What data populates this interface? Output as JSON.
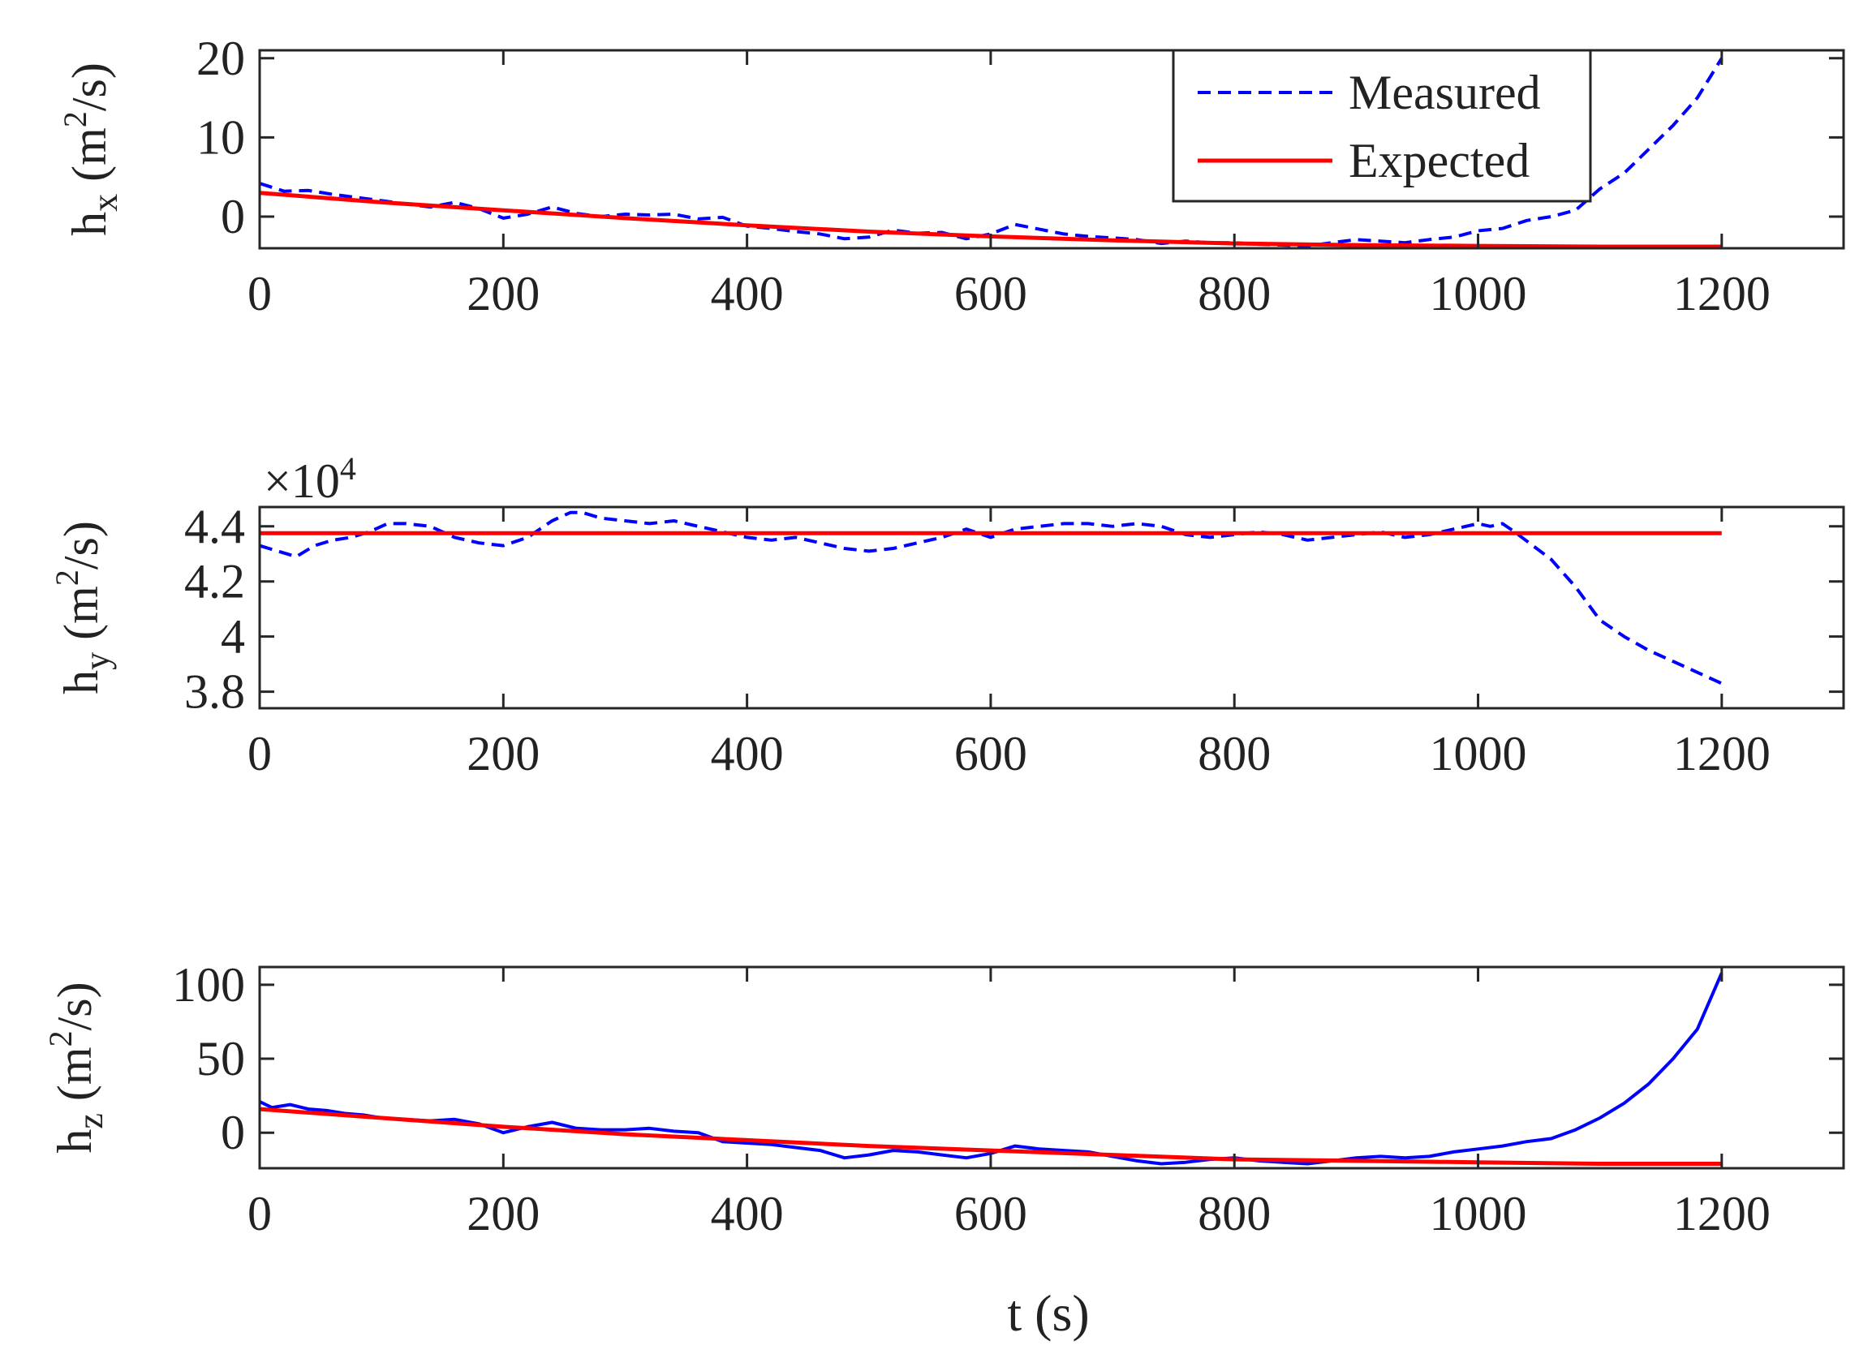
{
  "chart_data": [
    {
      "type": "line",
      "id": "hx",
      "ylabel": {
        "main": "h",
        "sub": "x",
        "unit_before": "(m",
        "unit_sup": "2",
        "unit_after": "/s)"
      },
      "xlim": [
        0,
        1300
      ],
      "ylim": [
        -4,
        21
      ],
      "xticks": [
        0,
        200,
        400,
        600,
        800,
        1000,
        1200
      ],
      "yticks": [
        0,
        10,
        20
      ],
      "ytick_labels": [
        "0",
        "10",
        "20"
      ],
      "legend": {
        "position": "top-right",
        "entries": [
          "Measured",
          "Expected"
        ]
      },
      "series": [
        {
          "name": "Measured",
          "style": "dashed",
          "color": "#0000ff",
          "x": [
            0,
            20,
            40,
            60,
            80,
            100,
            120,
            140,
            160,
            180,
            200,
            220,
            240,
            260,
            280,
            300,
            320,
            340,
            360,
            380,
            400,
            420,
            440,
            460,
            480,
            500,
            520,
            540,
            560,
            580,
            600,
            620,
            640,
            660,
            680,
            700,
            720,
            740,
            760,
            780,
            800,
            820,
            840,
            860,
            880,
            900,
            920,
            940,
            960,
            980,
            1000,
            1020,
            1040,
            1060,
            1080,
            1100,
            1120,
            1140,
            1160,
            1180,
            1200
          ],
          "y": [
            4.2,
            3.2,
            3.3,
            2.8,
            2.4,
            2.0,
            1.6,
            1.2,
            1.8,
            1.0,
            -0.2,
            0.3,
            1.2,
            0.4,
            0.0,
            0.3,
            0.2,
            0.3,
            -0.3,
            -0.1,
            -1.2,
            -1.5,
            -1.9,
            -2.2,
            -2.8,
            -2.6,
            -1.7,
            -2.1,
            -2.0,
            -2.8,
            -2.2,
            -1.0,
            -1.6,
            -2.2,
            -2.5,
            -2.7,
            -2.9,
            -3.4,
            -3.1,
            -3.3,
            -3.3,
            -3.5,
            -3.6,
            -3.7,
            -3.3,
            -2.9,
            -3.1,
            -3.3,
            -2.9,
            -2.6,
            -1.8,
            -1.5,
            -0.5,
            0.0,
            0.8,
            3.5,
            5.5,
            8.5,
            11.5,
            15.0,
            20.0
          ]
        },
        {
          "name": "Expected",
          "style": "solid",
          "color": "#ff0000",
          "x": [
            0,
            100,
            200,
            300,
            400,
            500,
            600,
            700,
            800,
            900,
            1000,
            1100,
            1200
          ],
          "y": [
            3.0,
            1.8,
            0.8,
            -0.2,
            -1.1,
            -1.9,
            -2.5,
            -3.0,
            -3.4,
            -3.6,
            -3.7,
            -3.8,
            -3.8
          ]
        }
      ]
    },
    {
      "type": "line",
      "id": "hy",
      "ylabel": {
        "main": "h",
        "sub": "y",
        "unit_before": "(m",
        "unit_sup": "2",
        "unit_after": "/s)"
      },
      "exponent": {
        "base": "×10",
        "power": "4"
      },
      "xlim": [
        0,
        1300
      ],
      "ylim": [
        3.74,
        4.47
      ],
      "xticks": [
        0,
        200,
        400,
        600,
        800,
        1000,
        1200
      ],
      "yticks": [
        3.8,
        4.0,
        4.2,
        4.4
      ],
      "ytick_labels": [
        "3.8",
        "4",
        "4.2",
        "4.4"
      ],
      "series": [
        {
          "name": "Measured",
          "style": "dashed",
          "color": "#0000ff",
          "x": [
            0,
            15,
            30,
            45,
            60,
            75,
            90,
            105,
            120,
            140,
            160,
            180,
            200,
            220,
            240,
            255,
            265,
            280,
            300,
            320,
            340,
            360,
            380,
            400,
            420,
            440,
            460,
            480,
            500,
            520,
            540,
            560,
            580,
            600,
            620,
            640,
            660,
            680,
            700,
            720,
            740,
            760,
            780,
            800,
            820,
            840,
            860,
            880,
            900,
            920,
            940,
            960,
            980,
            1000,
            1010,
            1020,
            1030,
            1045,
            1060,
            1080,
            1100,
            1120,
            1140,
            1160,
            1180,
            1200
          ],
          "y": [
            4.33,
            4.31,
            4.29,
            4.33,
            4.35,
            4.36,
            4.38,
            4.41,
            4.41,
            4.4,
            4.36,
            4.34,
            4.33,
            4.36,
            4.42,
            4.45,
            4.45,
            4.43,
            4.42,
            4.41,
            4.42,
            4.4,
            4.38,
            4.36,
            4.35,
            4.36,
            4.34,
            4.32,
            4.31,
            4.32,
            4.34,
            4.36,
            4.39,
            4.36,
            4.39,
            4.4,
            4.41,
            4.41,
            4.4,
            4.41,
            4.4,
            4.37,
            4.36,
            4.37,
            4.38,
            4.37,
            4.35,
            4.36,
            4.37,
            4.38,
            4.36,
            4.37,
            4.39,
            4.41,
            4.4,
            4.41,
            4.38,
            4.33,
            4.28,
            4.18,
            4.06,
            4.0,
            3.95,
            3.91,
            3.87,
            3.83
          ]
        },
        {
          "name": "Expected",
          "style": "solid",
          "color": "#ff0000",
          "x": [
            0,
            1200
          ],
          "y": [
            4.375,
            4.375
          ]
        }
      ]
    },
    {
      "type": "line",
      "id": "hz",
      "ylabel": {
        "main": "h",
        "sub": "z",
        "unit_before": "(m",
        "unit_sup": "2",
        "unit_after": "/s)"
      },
      "xlabel": "t (s)",
      "xlim": [
        0,
        1300
      ],
      "ylim": [
        -24,
        112
      ],
      "xticks": [
        0,
        200,
        400,
        600,
        800,
        1000,
        1200
      ],
      "yticks": [
        0,
        50,
        100
      ],
      "ytick_labels": [
        "0",
        "50",
        "100"
      ],
      "series": [
        {
          "name": "Measured",
          "style": "solid",
          "color": "#0000ff",
          "x": [
            0,
            10,
            25,
            40,
            55,
            70,
            85,
            100,
            120,
            140,
            160,
            180,
            200,
            220,
            240,
            260,
            280,
            300,
            320,
            340,
            360,
            380,
            400,
            420,
            440,
            460,
            480,
            500,
            520,
            540,
            560,
            580,
            600,
            620,
            640,
            660,
            680,
            700,
            720,
            740,
            760,
            780,
            800,
            820,
            840,
            860,
            880,
            900,
            920,
            940,
            960,
            980,
            1000,
            1020,
            1040,
            1060,
            1080,
            1100,
            1120,
            1140,
            1160,
            1180,
            1200
          ],
          "y": [
            21,
            17,
            19,
            16,
            15,
            13,
            12,
            10,
            9,
            8,
            9,
            6,
            0,
            4,
            7,
            3,
            2,
            2,
            3,
            1,
            0,
            -6,
            -7,
            -8,
            -10,
            -12,
            -17,
            -15,
            -12,
            -13,
            -15,
            -17,
            -14,
            -9,
            -11,
            -12,
            -13,
            -16,
            -19,
            -21,
            -20,
            -18,
            -17,
            -19,
            -20,
            -21,
            -19,
            -17,
            -16,
            -17,
            -16,
            -13,
            -11,
            -9,
            -6,
            -4,
            2,
            10,
            20,
            33,
            50,
            70,
            108
          ]
        },
        {
          "name": "Expected",
          "style": "solid",
          "color": "#ff0000",
          "x": [
            0,
            100,
            200,
            300,
            400,
            500,
            600,
            700,
            800,
            900,
            1000,
            1100,
            1200
          ],
          "y": [
            16,
            10,
            4,
            -1,
            -5,
            -9,
            -12,
            -15,
            -18,
            -19,
            -20,
            -21,
            -21
          ]
        }
      ]
    }
  ]
}
